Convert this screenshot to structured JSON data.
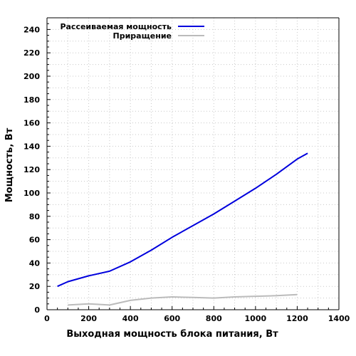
{
  "chart_data": {
    "type": "line",
    "xlabel": "Выходная мощность блока питания, Вт",
    "ylabel": "Мощность, Вт",
    "xlim": [
      0,
      1400
    ],
    "ylim": [
      0,
      250
    ],
    "xticks": [
      0,
      200,
      400,
      600,
      800,
      1000,
      1200,
      1400
    ],
    "yticks": [
      0,
      20,
      40,
      60,
      80,
      100,
      120,
      140,
      160,
      180,
      200,
      220,
      240
    ],
    "grid": true,
    "legend_position": "top-right",
    "series": [
      {
        "name": "Рассеиваемая мощность",
        "color": "#0000dd",
        "x": [
          50,
          100,
          200,
          300,
          400,
          500,
          600,
          700,
          800,
          900,
          1000,
          1100,
          1200,
          1250
        ],
        "y": [
          20,
          24,
          29,
          33,
          41,
          51,
          62,
          72,
          82,
          93,
          104,
          116,
          129,
          134
        ]
      },
      {
        "name": "Приращение",
        "color": "#bbbbbb",
        "x": [
          100,
          200,
          300,
          400,
          500,
          600,
          700,
          800,
          900,
          1000,
          1100,
          1200
        ],
        "y": [
          4,
          5,
          4,
          8,
          10,
          11,
          10.5,
          10,
          11,
          11.5,
          12,
          13
        ]
      }
    ]
  }
}
